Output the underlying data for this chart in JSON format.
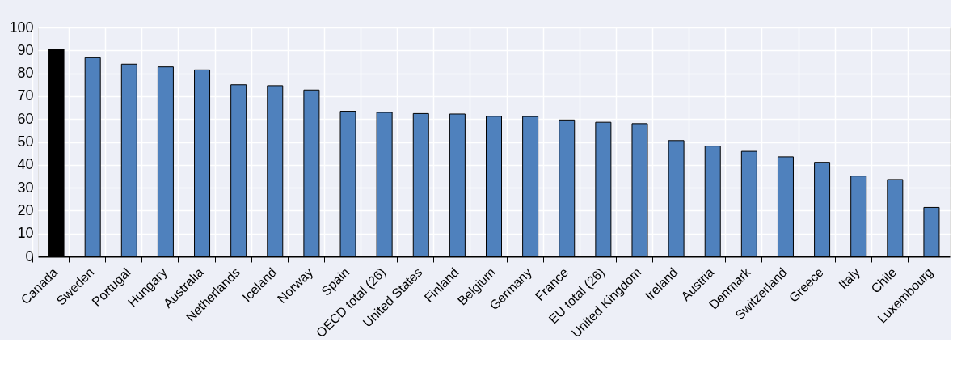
{
  "chart_data": {
    "type": "bar",
    "categories": [
      "Canada",
      "Sweden",
      "Portugal",
      "Hungary",
      "Australia",
      "Netherlands",
      "Iceland",
      "Norway",
      "Spain",
      "OECD total (26)",
      "United States",
      "Finland",
      "Belgium",
      "Germany",
      "France",
      "EU total (26)",
      "United Kingdom",
      "Ireland",
      "Austria",
      "Denmark",
      "Switzerland",
      "Greece",
      "Italy",
      "Chile",
      "Luxembourg"
    ],
    "values": [
      90.5,
      86.8,
      84.0,
      82.8,
      81.5,
      75.0,
      74.6,
      72.7,
      63.4,
      62.9,
      62.4,
      62.2,
      61.2,
      61.1,
      59.6,
      58.6,
      58.0,
      50.6,
      48.2,
      45.9,
      43.5,
      41.1,
      35.1,
      33.6,
      21.4
    ],
    "colors": [
      "#000000",
      "#4f81bd",
      "#4f81bd",
      "#4f81bd",
      "#4f81bd",
      "#4f81bd",
      "#4f81bd",
      "#4f81bd",
      "#4f81bd",
      "#4f81bd",
      "#4f81bd",
      "#4f81bd",
      "#4f81bd",
      "#4f81bd",
      "#4f81bd",
      "#4f81bd",
      "#4f81bd",
      "#4f81bd",
      "#4f81bd",
      "#4f81bd",
      "#4f81bd",
      "#4f81bd",
      "#4f81bd",
      "#4f81bd",
      "#4f81bd"
    ],
    "ylim": [
      0,
      100
    ],
    "yticks": [
      0,
      10,
      20,
      30,
      40,
      50,
      60,
      70,
      80,
      90,
      100
    ],
    "grid": true
  }
}
